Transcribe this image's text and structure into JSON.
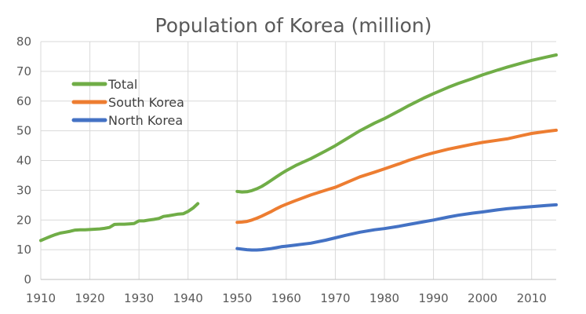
{
  "chart_data": {
    "type": "line",
    "title": "Population of Korea (million)",
    "xlabel": "",
    "ylabel": "",
    "xlim": [
      1910,
      2015
    ],
    "ylim": [
      0,
      80
    ],
    "x_ticks": [
      1910,
      1920,
      1930,
      1940,
      1950,
      1960,
      1970,
      1980,
      1990,
      2000,
      2010
    ],
    "y_ticks": [
      0,
      10,
      20,
      30,
      40,
      50,
      60,
      70,
      80
    ],
    "grid": true,
    "legend_position": "top-left",
    "series": [
      {
        "name": "Total",
        "color": "#70ad47",
        "segments": [
          [
            [
              1910,
              13.1
            ],
            [
              1911,
              13.8
            ],
            [
              1912,
              14.5
            ],
            [
              1913,
              15.1
            ],
            [
              1914,
              15.6
            ],
            [
              1915,
              15.9
            ],
            [
              1916,
              16.2
            ],
            [
              1917,
              16.6
            ],
            [
              1918,
              16.7
            ],
            [
              1919,
              16.7
            ],
            [
              1920,
              16.8
            ],
            [
              1921,
              16.9
            ],
            [
              1922,
              17.0
            ],
            [
              1923,
              17.2
            ],
            [
              1924,
              17.5
            ],
            [
              1925,
              18.5
            ],
            [
              1926,
              18.6
            ],
            [
              1927,
              18.6
            ],
            [
              1928,
              18.7
            ],
            [
              1929,
              18.8
            ],
            [
              1930,
              19.7
            ],
            [
              1931,
              19.7
            ],
            [
              1932,
              20.0
            ],
            [
              1933,
              20.2
            ],
            [
              1934,
              20.5
            ],
            [
              1935,
              21.2
            ],
            [
              1936,
              21.4
            ],
            [
              1937,
              21.7
            ],
            [
              1938,
              22.0
            ],
            [
              1939,
              22.1
            ],
            [
              1940,
              22.9
            ],
            [
              1941,
              24.0
            ],
            [
              1942,
              25.5
            ]
          ],
          [
            [
              1950,
              29.6
            ],
            [
              1951,
              29.4
            ],
            [
              1952,
              29.5
            ],
            [
              1953,
              29.9
            ],
            [
              1954,
              30.5
            ],
            [
              1955,
              31.3
            ],
            [
              1956,
              32.3
            ],
            [
              1957,
              33.4
            ],
            [
              1958,
              34.5
            ],
            [
              1959,
              35.6
            ],
            [
              1960,
              36.6
            ],
            [
              1962,
              38.4
            ],
            [
              1965,
              40.6
            ],
            [
              1968,
              43.2
            ],
            [
              1970,
              45.0
            ],
            [
              1972,
              47.0
            ],
            [
              1975,
              50.0
            ],
            [
              1978,
              52.6
            ],
            [
              1980,
              54.1
            ],
            [
              1983,
              56.7
            ],
            [
              1985,
              58.5
            ],
            [
              1988,
              61.0
            ],
            [
              1990,
              62.5
            ],
            [
              1993,
              64.6
            ],
            [
              1995,
              65.9
            ],
            [
              1998,
              67.6
            ],
            [
              2000,
              68.8
            ],
            [
              2003,
              70.4
            ],
            [
              2005,
              71.4
            ],
            [
              2008,
              72.8
            ],
            [
              2010,
              73.7
            ],
            [
              2013,
              74.8
            ],
            [
              2015,
              75.5
            ]
          ]
        ]
      },
      {
        "name": "South Korea",
        "color": "#ed7d31",
        "segments": [
          [
            [
              1950,
              19.2
            ],
            [
              1951,
              19.3
            ],
            [
              1952,
              19.5
            ],
            [
              1953,
              20.0
            ],
            [
              1954,
              20.6
            ],
            [
              1955,
              21.3
            ],
            [
              1956,
              22.1
            ],
            [
              1957,
              22.9
            ],
            [
              1958,
              23.8
            ],
            [
              1959,
              24.6
            ],
            [
              1960,
              25.3
            ],
            [
              1962,
              26.6
            ],
            [
              1965,
              28.4
            ],
            [
              1968,
              30.0
            ],
            [
              1970,
              31.0
            ],
            [
              1972,
              32.4
            ],
            [
              1975,
              34.5
            ],
            [
              1978,
              36.1
            ],
            [
              1980,
              37.2
            ],
            [
              1983,
              38.9
            ],
            [
              1985,
              40.1
            ],
            [
              1988,
              41.7
            ],
            [
              1990,
              42.6
            ],
            [
              1993,
              43.8
            ],
            [
              1995,
              44.5
            ],
            [
              1998,
              45.5
            ],
            [
              2000,
              46.1
            ],
            [
              2003,
              46.8
            ],
            [
              2005,
              47.3
            ],
            [
              2008,
              48.4
            ],
            [
              2010,
              49.1
            ],
            [
              2013,
              49.8
            ],
            [
              2015,
              50.2
            ]
          ]
        ]
      },
      {
        "name": "North Korea",
        "color": "#4472c4",
        "segments": [
          [
            [
              1950,
              10.4
            ],
            [
              1951,
              10.2
            ],
            [
              1952,
              10.0
            ],
            [
              1953,
              9.9
            ],
            [
              1954,
              9.9
            ],
            [
              1955,
              10.0
            ],
            [
              1956,
              10.2
            ],
            [
              1957,
              10.4
            ],
            [
              1958,
              10.7
            ],
            [
              1959,
              11.0
            ],
            [
              1960,
              11.2
            ],
            [
              1962,
              11.6
            ],
            [
              1965,
              12.2
            ],
            [
              1968,
              13.2
            ],
            [
              1970,
              14.0
            ],
            [
              1972,
              14.8
            ],
            [
              1975,
              15.9
            ],
            [
              1978,
              16.7
            ],
            [
              1980,
              17.1
            ],
            [
              1983,
              17.9
            ],
            [
              1985,
              18.5
            ],
            [
              1988,
              19.4
            ],
            [
              1990,
              20.0
            ],
            [
              1993,
              21.0
            ],
            [
              1995,
              21.6
            ],
            [
              1998,
              22.3
            ],
            [
              2000,
              22.7
            ],
            [
              2003,
              23.4
            ],
            [
              2005,
              23.8
            ],
            [
              2008,
              24.2
            ],
            [
              2010,
              24.5
            ],
            [
              2013,
              24.9
            ],
            [
              2015,
              25.1
            ]
          ]
        ]
      }
    ]
  }
}
